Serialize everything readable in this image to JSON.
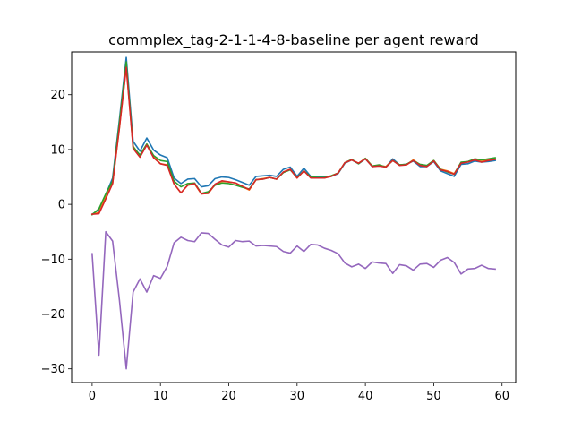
{
  "chart_data": {
    "type": "line",
    "title": "commplex_tag-2-1-1-4-8-baseline per agent reward",
    "xlabel": "",
    "ylabel": "",
    "xlim": [
      -3,
      62
    ],
    "ylim": [
      -32.5,
      27.8
    ],
    "xticks": [
      0,
      10,
      20,
      30,
      40,
      50,
      60
    ],
    "yticks": [
      -30,
      -20,
      -10,
      0,
      10,
      20
    ],
    "xtick_labels": [
      "0",
      "10",
      "20",
      "30",
      "40",
      "50",
      "60"
    ],
    "ytick_labels": [
      "−30",
      "−20",
      "−10",
      "0",
      "10",
      "20"
    ],
    "grid": false,
    "legend": false,
    "x": [
      0,
      1,
      2,
      3,
      4,
      5,
      6,
      7,
      8,
      9,
      10,
      11,
      12,
      13,
      14,
      15,
      16,
      17,
      18,
      19,
      20,
      21,
      22,
      23,
      24,
      25,
      26,
      27,
      28,
      29,
      30,
      31,
      32,
      33,
      34,
      35,
      36,
      37,
      38,
      39,
      40,
      41,
      42,
      43,
      44,
      45,
      46,
      47,
      48,
      49,
      50,
      51,
      52,
      53,
      54,
      55,
      56,
      57,
      58,
      59
    ],
    "series": [
      {
        "color": "#1f77b4",
        "values": [
          -1.8,
          -1.0,
          1.8,
          4.8,
          15.5,
          26.8,
          11.5,
          9.7,
          12.1,
          9.9,
          9.0,
          8.5,
          4.8,
          3.8,
          4.6,
          4.7,
          3.2,
          3.4,
          4.7,
          5.0,
          4.9,
          4.5,
          4.0,
          3.5,
          5.1,
          5.2,
          5.3,
          5.1,
          6.4,
          6.8,
          5.1,
          6.6,
          5.1,
          5.0,
          5.0,
          5.1,
          5.6,
          7.5,
          8.1,
          7.4,
          8.3,
          6.9,
          7.1,
          6.8,
          8.3,
          7.2,
          7.3,
          7.9,
          6.9,
          6.9,
          7.8,
          6.1,
          5.6,
          5.1,
          7.3,
          7.4,
          7.9,
          7.7,
          7.8,
          8.0
        ]
      },
      {
        "color": "#ff7f0e",
        "values": [
          -1.8,
          -1.5,
          1.4,
          3.8,
          14.0,
          25.0,
          10.6,
          8.8,
          11.0,
          8.7,
          7.4,
          7.2,
          3.7,
          2.1,
          3.5,
          3.7,
          1.9,
          2.0,
          3.6,
          4.2,
          4.1,
          3.9,
          3.2,
          2.6,
          4.5,
          4.7,
          4.9,
          4.6,
          5.9,
          6.4,
          4.8,
          6.1,
          4.9,
          4.8,
          4.8,
          5.2,
          5.7,
          7.6,
          8.1,
          7.5,
          8.4,
          7.0,
          7.1,
          6.9,
          8.0,
          7.2,
          7.2,
          8.1,
          7.2,
          7.0,
          8.0,
          6.4,
          6.1,
          5.6,
          7.6,
          7.8,
          8.2,
          7.8,
          8.2,
          8.3
        ]
      },
      {
        "color": "#2ca02c",
        "values": [
          -1.9,
          -0.8,
          1.9,
          4.3,
          15.0,
          26.0,
          10.5,
          9.0,
          11.0,
          8.9,
          8.0,
          7.8,
          4.2,
          3.2,
          3.8,
          3.9,
          2.0,
          2.3,
          3.5,
          3.9,
          3.8,
          3.5,
          3.1,
          2.8,
          4.5,
          4.6,
          4.9,
          4.6,
          5.8,
          6.3,
          4.9,
          6.1,
          5.0,
          4.9,
          4.9,
          5.2,
          5.7,
          7.6,
          8.2,
          7.4,
          8.4,
          7.0,
          7.2,
          6.8,
          8.0,
          7.2,
          7.3,
          8.0,
          7.3,
          7.1,
          8.0,
          6.4,
          5.9,
          5.5,
          7.7,
          7.8,
          8.3,
          8.1,
          8.3,
          8.5
        ]
      },
      {
        "color": "#d62728",
        "values": [
          -1.8,
          -1.7,
          1.0,
          3.8,
          14.0,
          25.0,
          10.2,
          8.6,
          10.8,
          8.5,
          7.4,
          7.1,
          3.7,
          2.1,
          3.5,
          3.8,
          1.9,
          2.0,
          3.7,
          4.3,
          4.1,
          3.9,
          3.3,
          2.7,
          4.5,
          4.6,
          4.9,
          4.6,
          5.9,
          6.4,
          4.8,
          6.1,
          4.8,
          4.8,
          4.8,
          5.1,
          5.7,
          7.6,
          8.1,
          7.5,
          8.3,
          6.9,
          7.0,
          6.8,
          8.0,
          7.1,
          7.2,
          8.0,
          7.1,
          6.9,
          7.9,
          6.3,
          6.0,
          5.5,
          7.5,
          7.7,
          8.1,
          7.7,
          8.0,
          8.2
        ]
      },
      {
        "color": "#9467bd",
        "values": [
          -9.0,
          -27.5,
          -5.0,
          -6.7,
          -17.5,
          -30.0,
          -16.0,
          -13.6,
          -16.0,
          -13.0,
          -13.5,
          -11.3,
          -7.0,
          -6.0,
          -6.6,
          -6.8,
          -5.2,
          -5.3,
          -6.4,
          -7.4,
          -7.8,
          -6.6,
          -6.8,
          -6.7,
          -7.6,
          -7.5,
          -7.6,
          -7.7,
          -8.6,
          -8.9,
          -7.6,
          -8.6,
          -7.3,
          -7.4,
          -8.0,
          -8.4,
          -9.0,
          -10.7,
          -11.4,
          -10.9,
          -11.7,
          -10.5,
          -10.7,
          -10.8,
          -12.6,
          -11.0,
          -11.2,
          -12.0,
          -10.9,
          -10.8,
          -11.5,
          -10.2,
          -9.7,
          -10.6,
          -12.7,
          -11.8,
          -11.7,
          -11.1,
          -11.7,
          -11.8
        ]
      }
    ]
  }
}
